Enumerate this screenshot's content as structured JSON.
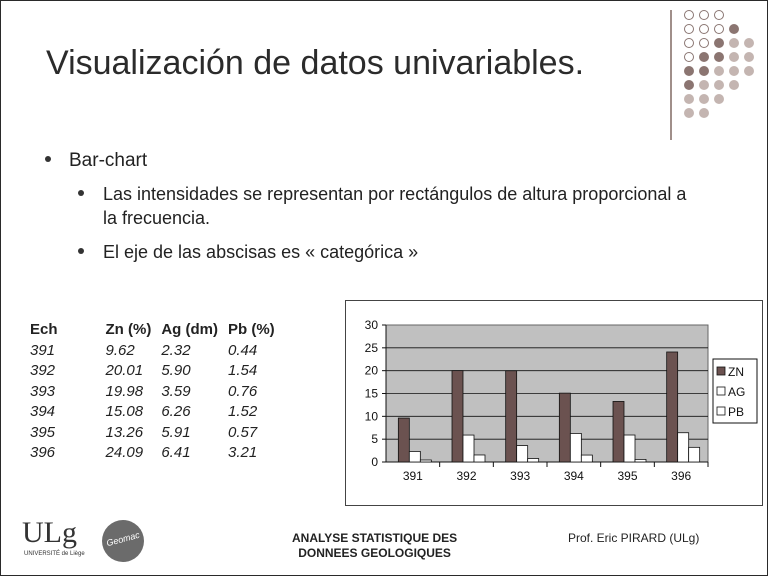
{
  "title": "Visualización de datos univariables.",
  "bullets": {
    "level1": "Bar-chart",
    "level2": [
      "Las intensidades se representan por  rectángulos de altura proporcional a la frecuencia.",
      "El eje de las abscisas es « categórica »"
    ]
  },
  "table": {
    "headers": [
      "Ech",
      "Zn (%)",
      "Ag (dm)",
      "Pb (%)"
    ],
    "rows": [
      [
        "391",
        "9.62",
        "2.32",
        "0.44"
      ],
      [
        "392",
        "20.01",
        "5.90",
        "1.54"
      ],
      [
        "393",
        "19.98",
        "3.59",
        "0.76"
      ],
      [
        "394",
        "15.08",
        "6.26",
        "1.52"
      ],
      [
        "395",
        "13.26",
        "5.91",
        "0.57"
      ],
      [
        "396",
        "24.09",
        "6.41",
        "3.21"
      ]
    ]
  },
  "chart_data": {
    "type": "bar",
    "categories": [
      "391",
      "392",
      "393",
      "394",
      "395",
      "396"
    ],
    "series": [
      {
        "name": "ZN",
        "values": [
          9.62,
          20.01,
          19.98,
          15.08,
          13.26,
          24.09
        ],
        "color": "#6b5250"
      },
      {
        "name": "AG",
        "values": [
          2.32,
          5.9,
          3.59,
          6.26,
          5.91,
          6.41
        ],
        "color": "#ffffff"
      },
      {
        "name": "PB",
        "values": [
          0.44,
          1.54,
          0.76,
          1.52,
          0.57,
          3.21
        ],
        "color": "#ffffff"
      }
    ],
    "yticks": [
      "0",
      "5",
      "10",
      "15",
      "20",
      "25",
      "30"
    ],
    "ylim": [
      0,
      30
    ],
    "grid": true,
    "plot_background": "#c0c0c0",
    "legend": "right"
  },
  "footer": {
    "course_line1": "ANALYSE STATISTIQUE DES",
    "course_line2": "DONNEES GEOLOGIQUES",
    "author": "Prof. Eric PIRARD (ULg)"
  },
  "logo": {
    "ulg": "ULg",
    "ulg_sub": "UNIVERSITÉ de Liège",
    "geo": "Geomac"
  },
  "colors": {
    "accent_dark": "#8b7571",
    "accent_light": "#c4b5b1"
  }
}
